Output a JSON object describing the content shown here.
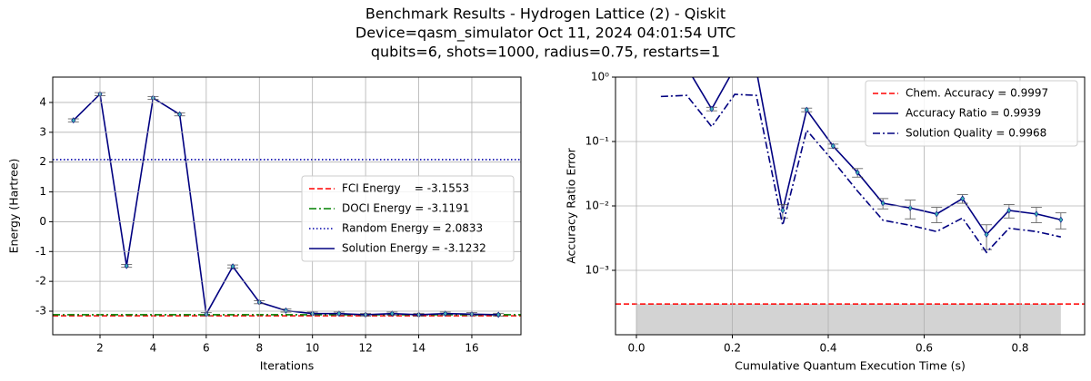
{
  "title": [
    "Benchmark Results - Hydrogen Lattice (2) - Qiskit",
    "Device=qasm_simulator  Oct 11, 2024 04:01:54 UTC",
    "qubits=6, shots=1000, radius=0.75, restarts=1"
  ],
  "chart_data": [
    {
      "type": "line",
      "xlabel": "Iterations",
      "ylabel": "Energy (Hartree)",
      "xlim": [
        0.22,
        17.85
      ],
      "ylim": [
        -3.79,
        4.85
      ],
      "xticks": [
        2,
        4,
        6,
        8,
        10,
        12,
        14,
        16
      ],
      "yticks": [
        -3,
        -2,
        -1,
        0,
        1,
        2,
        3,
        4
      ],
      "yscale": "linear",
      "grid": true,
      "legend": "center right",
      "x": [
        1,
        2,
        3,
        4,
        5,
        6,
        7,
        8,
        9,
        10,
        11,
        12,
        13,
        14,
        15,
        16,
        17
      ],
      "hlines": [
        {
          "name": "FCI Energy    = -3.1553",
          "value": -3.1553,
          "color": "#ff0000",
          "style": "dashed"
        },
        {
          "name": "DOCI Energy = -3.1191",
          "value": -3.1191,
          "color": "#008000",
          "style": "dashdot"
        },
        {
          "name": "Random Energy = 2.0833",
          "value": 2.0833,
          "color": "#0000aa",
          "style": "dotted"
        }
      ],
      "series": [
        {
          "name": "Solution Energy = -3.1232",
          "color": "#000080",
          "style": "solid",
          "marker_color": "#3cb4b4",
          "values": [
            3.4,
            4.28,
            -1.48,
            4.15,
            3.6,
            -3.1,
            -1.5,
            -2.7,
            -2.98,
            -3.08,
            -3.08,
            -3.12,
            -3.08,
            -3.12,
            -3.08,
            -3.1,
            -3.12
          ],
          "errors": [
            0.05,
            0.05,
            0.05,
            0.05,
            0.05,
            0.05,
            0.05,
            0.05,
            0.05,
            0.05,
            0.05,
            0.05,
            0.05,
            0.05,
            0.05,
            0.05,
            0.05
          ]
        }
      ]
    },
    {
      "type": "line",
      "xlabel": "Cumulative Quantum Execution Time (s)",
      "ylabel": "Accuracy Ratio Error",
      "xlim": [
        -0.0436,
        0.9346
      ],
      "ylim": [
        0.0001,
        1
      ],
      "xticks": [
        {
          "value": 0,
          "label": "0.0"
        },
        0.2,
        0.4,
        0.6,
        0.8
      ],
      "yticks": [
        {
          "value": 0.001,
          "label": "10⁻³"
        },
        {
          "value": 0.01,
          "label": "10⁻²"
        },
        {
          "value": 0.1,
          "label": "10⁻¹"
        },
        {
          "value": 1,
          "label": "10⁰"
        }
      ],
      "yscale": "log",
      "grid": true,
      "legend": "upper right",
      "x": [
        0.051,
        0.105,
        0.157,
        0.205,
        0.25,
        0.305,
        0.355,
        0.41,
        0.461,
        0.514,
        0.571,
        0.626,
        0.68,
        0.73,
        0.777,
        0.834,
        0.885
      ],
      "shade": {
        "xlim": [
          0,
          0.885
        ],
        "color": "#d3d3d3"
      },
      "hlines": [
        {
          "name": "Chem. Accuracy = 0.9997",
          "value": 0.0003,
          "color": "#ff0000",
          "style": "dashed"
        }
      ],
      "series": [
        {
          "name": "Accuracy Ratio = 0.9939",
          "color": "#000080",
          "style": "solid",
          "marker_color": "#3cb4b4",
          "values": [
            1.25,
            1.42,
            0.32,
            1.39,
            1.29,
            0.0085,
            0.31,
            0.085,
            0.033,
            0.011,
            0.0093,
            0.0075,
            0.013,
            0.0036,
            0.0085,
            0.0075,
            0.0061
          ],
          "errors": [
            null,
            null,
            0.02,
            null,
            null,
            0.002,
            0.02,
            0.006,
            0.005,
            0.002,
            0.003,
            0.002,
            0.002,
            0.0015,
            0.002,
            0.002,
            0.0017
          ]
        },
        {
          "name": "Solution Quality = 0.9968",
          "color": "#000080",
          "style": "dashdot",
          "values": [
            0.5,
            0.52,
            0.17,
            0.54,
            0.52,
            0.005,
            0.15,
            0.05,
            0.017,
            0.006,
            0.005,
            0.004,
            0.0065,
            0.0019,
            0.0045,
            0.004,
            0.0033
          ]
        }
      ]
    }
  ]
}
